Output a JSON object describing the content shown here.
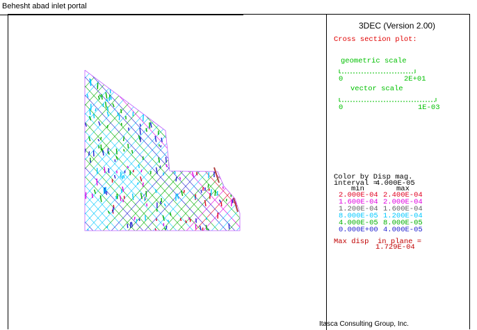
{
  "window": {
    "title": "Behesht abad inlet portal"
  },
  "legend": {
    "app_version": "3DEC (Version 2.00)",
    "plot_kind": "Cross section plot:",
    "geometric_scale": {
      "label": "geometric scale",
      "min": "0",
      "max": "2E+01"
    },
    "vector_scale": {
      "label": "vector scale",
      "min": "0",
      "max": "1E-03"
    },
    "color_by": {
      "title": "Color by Disp mag.",
      "interval_label": "interval =",
      "interval_value": "4.000E-05",
      "min_header": "min",
      "max_header": "max",
      "rows": [
        {
          "min": "2.000E-04",
          "max": "2.400E-04",
          "color": "#e00020"
        },
        {
          "min": "1.600E-04",
          "max": "2.000E-04",
          "color": "#e000e0"
        },
        {
          "min": "1.200E-04",
          "max": "1.600E-04",
          "color": "#606060"
        },
        {
          "min": "8.000E-05",
          "max": "1.200E-04",
          "color": "#00c8ff"
        },
        {
          "min": "4.000E-05",
          "max": "8.000E-05",
          "color": "#00b000"
        },
        {
          "min": "0.000E+00",
          "max": "4.000E-05",
          "color": "#2020d0"
        }
      ]
    },
    "max_disp_label": "Max disp  in plane =",
    "max_disp_value": "1.729E-04"
  },
  "footer": {
    "company": "Itasca Consulting Group, Inc."
  }
}
